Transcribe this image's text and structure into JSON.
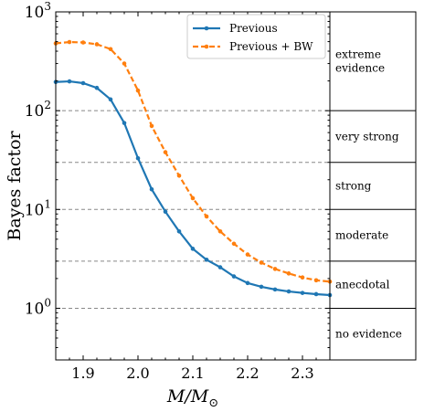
{
  "chart_data": {
    "type": "line",
    "title": "",
    "xlabel": "M/M",
    "xlabel_sub": "⊙",
    "ylabel": "Bayes factor",
    "y_scale": "log",
    "xlim": [
      1.85,
      2.35
    ],
    "ylim": [
      0.3,
      1000
    ],
    "x_ticks": [
      1.9,
      2.0,
      2.1,
      2.2,
      2.3
    ],
    "x_tick_labels": [
      "1.9",
      "2.0",
      "2.1",
      "2.2",
      "2.3"
    ],
    "y_ticks": [
      1,
      10,
      100,
      1000
    ],
    "y_tick_labels": [
      {
        "base": "10",
        "exp": "0"
      },
      {
        "base": "10",
        "exp": "1"
      },
      {
        "base": "10",
        "exp": "2"
      },
      {
        "base": "10",
        "exp": "3"
      }
    ],
    "grid": false,
    "legend_position": "top-right",
    "evidence_thresholds": [
      1,
      3,
      10,
      30,
      100
    ],
    "evidence_bands": [
      {
        "label": "no evidence",
        "from": 0.3,
        "to": 1
      },
      {
        "label": "anecdotal",
        "from": 1,
        "to": 3
      },
      {
        "label": "moderate",
        "from": 3,
        "to": 10
      },
      {
        "label": "strong",
        "from": 10,
        "to": 30
      },
      {
        "label": "very strong",
        "from": 30,
        "to": 100
      },
      {
        "label": "extreme\nevidence",
        "from": 100,
        "to": 1000
      }
    ],
    "series": [
      {
        "name": "Previous",
        "color": "#1f77b4",
        "style": "solid",
        "x": [
          1.85,
          1.875,
          1.9,
          1.925,
          1.95,
          1.975,
          2.0,
          2.025,
          2.05,
          2.075,
          2.1,
          2.125,
          2.15,
          2.175,
          2.2,
          2.225,
          2.25,
          2.275,
          2.3,
          2.325,
          2.35
        ],
        "y": [
          195,
          198,
          190,
          170,
          130,
          75,
          33,
          16,
          9.5,
          6,
          4,
          3.1,
          2.6,
          2.1,
          1.8,
          1.65,
          1.55,
          1.48,
          1.43,
          1.39,
          1.36
        ]
      },
      {
        "name": "Previous + BW",
        "color": "#ff7f0e",
        "style": "dashed",
        "x": [
          1.85,
          1.875,
          1.9,
          1.925,
          1.95,
          1.975,
          2.0,
          2.025,
          2.05,
          2.075,
          2.1,
          2.125,
          2.15,
          2.175,
          2.2,
          2.225,
          2.25,
          2.275,
          2.3,
          2.325,
          2.35
        ],
        "y": [
          480,
          495,
          490,
          470,
          420,
          300,
          160,
          70,
          38,
          22,
          13,
          8.5,
          6,
          4.5,
          3.5,
          2.9,
          2.5,
          2.25,
          2.05,
          1.92,
          1.86
        ]
      }
    ]
  }
}
